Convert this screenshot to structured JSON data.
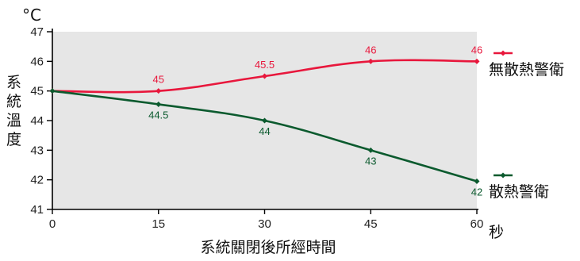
{
  "chart_data": {
    "type": "line",
    "unit_label": "°C",
    "ylabel": "系統溫度",
    "xlabel": "系統關閉後所經時間",
    "x_unit": "秒",
    "x": [
      0,
      15,
      30,
      45,
      60
    ],
    "xlim": [
      0,
      60
    ],
    "ylim": [
      41,
      47
    ],
    "yticks": [
      41,
      42,
      43,
      44,
      45,
      46,
      47
    ],
    "grid": false,
    "legend_position": "right",
    "series": [
      {
        "name": "無散熱警衛",
        "color": "#e8173c",
        "values": [
          45,
          45,
          45.5,
          46,
          46
        ],
        "labels": [
          "",
          "45",
          "45.5",
          "46",
          "46"
        ]
      },
      {
        "name": "散熱警衛",
        "color": "#0b5a2e",
        "values": [
          45,
          44.55,
          44,
          43,
          41.95
        ],
        "labels": [
          "",
          "44.5",
          "44",
          "43",
          "42"
        ]
      }
    ]
  }
}
